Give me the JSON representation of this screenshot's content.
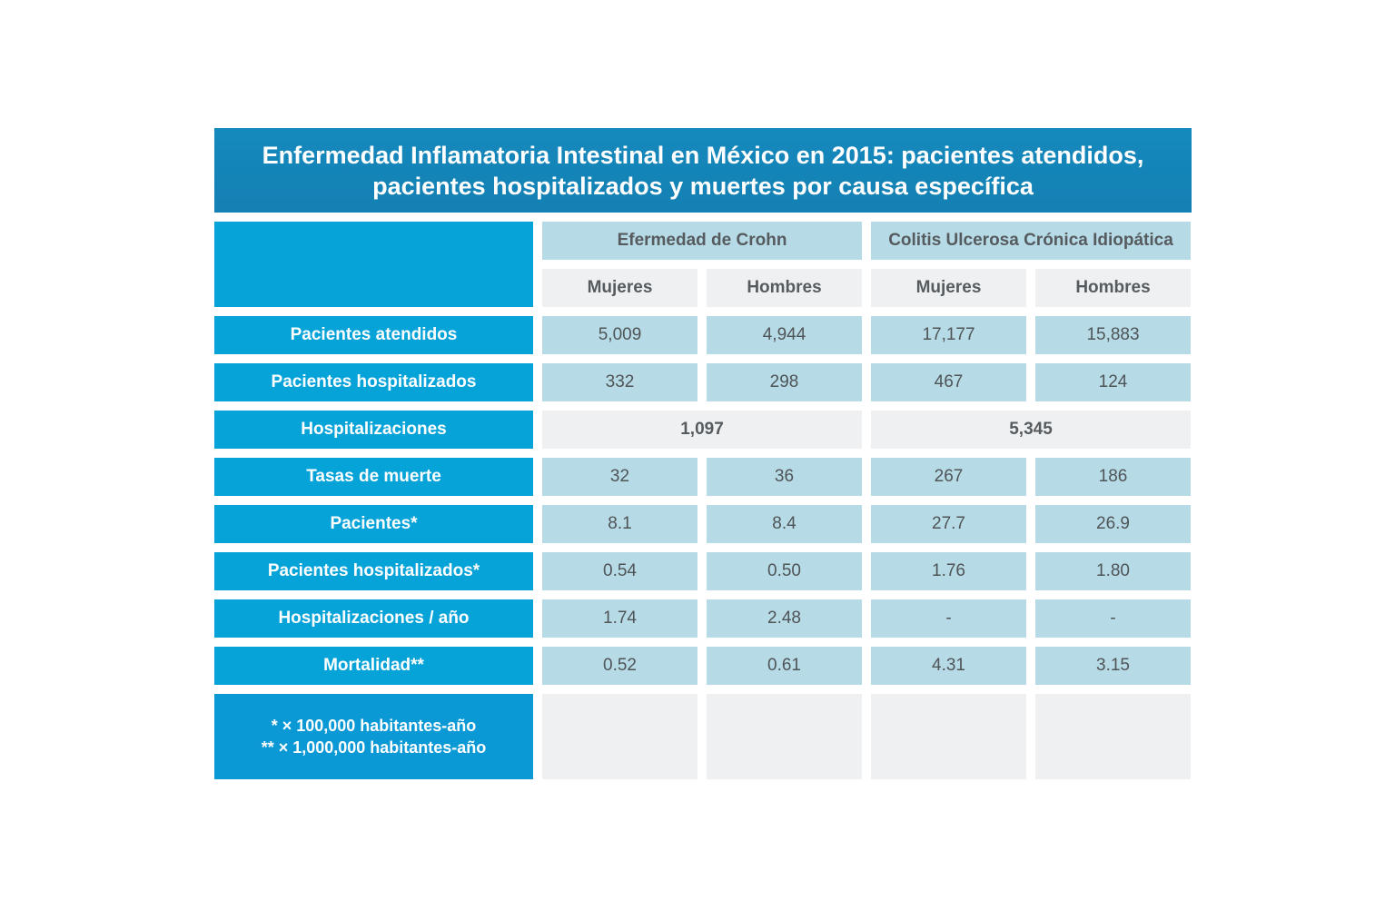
{
  "title_lines": [
    "Enfermedad Inflamatoria Intestinal en México en 2015: pacientes atendidos,",
    "pacientes hospitalizados y muertes por causa específica"
  ],
  "colors": {
    "title_bg": "#1589bd",
    "row_header_bg": "#06a3d9",
    "value_bg": "#b7dbe6",
    "light_bg": "#eff0f2"
  },
  "chart_data": {
    "type": "table",
    "groups": [
      {
        "name": "Efermedad de Crohn",
        "subcolumns": [
          "Mujeres",
          "Hombres"
        ]
      },
      {
        "name": "Colitis Ulcerosa Crónica Idiopática",
        "subcolumns": [
          "Mujeres",
          "Hombres"
        ]
      }
    ],
    "rows": [
      {
        "label": "Pacientes atendidos",
        "values": [
          "5,009",
          "4,944",
          "17,177",
          "15,883"
        ]
      },
      {
        "label": "Pacientes hospitalizados",
        "values": [
          "332",
          "298",
          "467",
          "124"
        ]
      },
      {
        "label": "Hospitalizaciones",
        "merged": [
          "1,097",
          "5,345"
        ]
      },
      {
        "label": "Tasas de muerte",
        "values": [
          "32",
          "36",
          "267",
          "186"
        ]
      },
      {
        "label": "Pacientes*",
        "values": [
          "8.1",
          "8.4",
          "27.7",
          "26.9"
        ]
      },
      {
        "label": "Pacientes hospitalizados*",
        "values": [
          "0.54",
          "0.50",
          "1.76",
          "1.80"
        ]
      },
      {
        "label": "Hospitalizaciones / año",
        "values": [
          "1.74",
          "2.48",
          "-",
          "-"
        ]
      },
      {
        "label": "Mortalidad**",
        "values": [
          "0.52",
          "0.61",
          "4.31",
          "3.15"
        ]
      }
    ],
    "footnotes": [
      "* × 100,000 habitantes-año",
      "** × 1,000,000 habitantes-año"
    ]
  }
}
